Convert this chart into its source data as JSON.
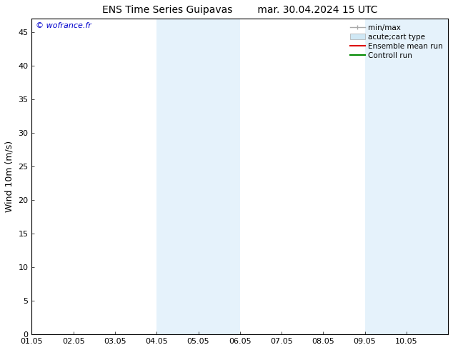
{
  "title_left": "ENS Time Series Guipavas",
  "title_right": "mar. 30.04.2024 15 UTC",
  "ylabel": "Wind 10m (m/s)",
  "watermark": "© wofrance.fr",
  "watermark_color": "#0000cc",
  "xlim_start": 0,
  "xlim_end": 10,
  "ylim": [
    0,
    47
  ],
  "yticks": [
    0,
    5,
    10,
    15,
    20,
    25,
    30,
    35,
    40,
    45
  ],
  "xtick_labels": [
    "01.05",
    "02.05",
    "03.05",
    "04.05",
    "05.05",
    "06.05",
    "07.05",
    "08.05",
    "09.05",
    "10.05"
  ],
  "shaded_regions": [
    {
      "xmin": 3.0,
      "xmax": 5.0,
      "color": "#e5f2fb"
    },
    {
      "xmin": 8.0,
      "xmax": 10.0,
      "color": "#e5f2fb"
    }
  ],
  "legend_entries": [
    {
      "label": "min/max",
      "color": "#aaaaaa",
      "type": "minmax"
    },
    {
      "label": "acute;cart type",
      "color": "#d0e8f5",
      "type": "fill"
    },
    {
      "label": "Ensemble mean run",
      "color": "#dd0000",
      "type": "line"
    },
    {
      "label": "Controll run",
      "color": "#008800",
      "type": "line"
    }
  ],
  "background_color": "#ffffff",
  "plot_bg_color": "#ffffff",
  "title_fontsize": 10,
  "label_fontsize": 9,
  "tick_fontsize": 8,
  "legend_fontsize": 7.5,
  "watermark_fontsize": 8
}
